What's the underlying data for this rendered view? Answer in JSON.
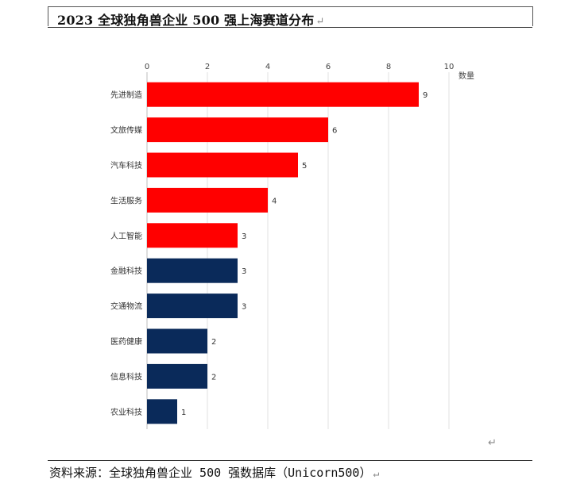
{
  "document": {
    "title": "2023 全球独角兽企业 500 强上海赛道分布",
    "paragraph_mark": "↵",
    "source": "资料来源：全球独角兽企业 500 强数据库（Unicorn500）"
  },
  "colors": {
    "red": "#ff0000",
    "navy": "#0a2a5a",
    "grid": "#e2e2e2",
    "axis_text": "#444444"
  },
  "chart_data": {
    "type": "bar",
    "orientation": "horizontal",
    "title": "",
    "xlabel": "数量",
    "ylabel": "",
    "xlim": [
      0,
      10
    ],
    "x_ticks": [
      "0",
      "2",
      "4",
      "6",
      "8",
      "10"
    ],
    "x_axis_position": "top",
    "grid": true,
    "categories": [
      "先进制造",
      "文旅传媒",
      "汽车科技",
      "生活服务",
      "人工智能",
      "金融科技",
      "交通物流",
      "医药健康",
      "信息科技",
      "农业科技"
    ],
    "values": [
      9,
      6,
      5,
      4,
      3,
      3,
      3,
      2,
      2,
      1
    ],
    "value_labels": [
      "9",
      "6",
      "5",
      "4",
      "3",
      "3",
      "3",
      "2",
      "2",
      "1"
    ],
    "bar_colors": [
      "#ff0000",
      "#ff0000",
      "#ff0000",
      "#ff0000",
      "#ff0000",
      "#0a2a5a",
      "#0a2a5a",
      "#0a2a5a",
      "#0a2a5a",
      "#0a2a5a"
    ]
  }
}
